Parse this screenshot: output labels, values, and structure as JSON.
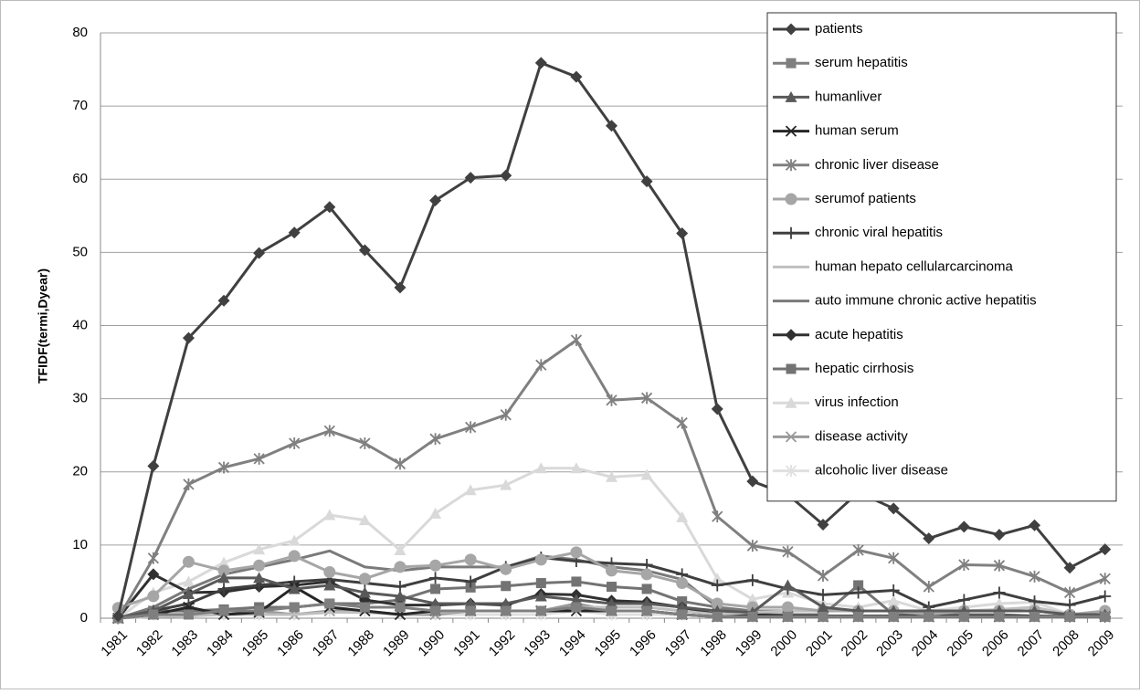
{
  "chart_data": {
    "type": "line",
    "y_label": "TFIDF(termi,Dyear)",
    "categories": [
      "1981",
      "1982",
      "1983",
      "1984",
      "1985",
      "1986",
      "1987",
      "1988",
      "1989",
      "1990",
      "1991",
      "1992",
      "1993",
      "1994",
      "1995",
      "1996",
      "1997",
      "1998",
      "1999",
      "2000",
      "2001",
      "2002",
      "2003",
      "2004",
      "2005",
      "2006",
      "2007",
      "2008",
      "2009"
    ],
    "ylim": [
      0,
      80
    ],
    "yticks": [
      0,
      10,
      20,
      30,
      40,
      50,
      60,
      70,
      80
    ],
    "grid": true,
    "legend": "top-right",
    "series": [
      {
        "name": "patients",
        "color": "#404040",
        "marker": "diamond",
        "values": [
          0.3,
          20.8,
          38.3,
          43.4,
          49.9,
          52.7,
          56.2,
          50.3,
          45.2,
          57.1,
          60.2,
          60.5,
          75.9,
          74,
          67.3,
          59.7,
          52.6,
          28.6,
          18.7,
          16.9,
          12.8,
          17.2,
          15,
          10.9,
          12.5,
          11.4,
          12.7,
          6.9,
          9.4
        ]
      },
      {
        "name": "serum hepatitis",
        "color": "#7f7f7f",
        "marker": "square",
        "values": [
          0,
          0.5,
          0.5,
          1,
          1,
          1.5,
          2,
          1.5,
          1.5,
          1,
          1,
          1,
          1,
          1.5,
          1,
          1,
          0.5,
          0.2,
          0.2,
          0.2,
          0.2,
          0.2,
          0.2,
          0.2,
          0.2,
          0.2,
          0.2,
          0.2,
          0.2
        ]
      },
      {
        "name": "humanliver",
        "color": "#595959",
        "marker": "triangle",
        "values": [
          0,
          1,
          3.3,
          5.5,
          5.5,
          4,
          4.5,
          3.5,
          3,
          2,
          2,
          2,
          3,
          2.5,
          2,
          2,
          1.5,
          1,
          0.8,
          4.5,
          1.5,
          1,
          1,
          1,
          1,
          1,
          1,
          0.5,
          0.5
        ]
      },
      {
        "name": "human serum",
        "color": "#262626",
        "marker": "x",
        "values": [
          0,
          0.5,
          1.5,
          0.5,
          0.8,
          4.3,
          1.5,
          1,
          0.5,
          1,
          1,
          1,
          1,
          1,
          1,
          1,
          0.5,
          0.2,
          0.2,
          0.2,
          0.2,
          0.2,
          0.2,
          0.2,
          0.2,
          0.2,
          0.2,
          0.2,
          0.2
        ]
      },
      {
        "name": "chronic liver disease",
        "color": "#808080",
        "marker": "star",
        "values": [
          0,
          8.2,
          18.3,
          20.6,
          21.8,
          23.9,
          25.6,
          23.9,
          21.1,
          24.5,
          26.1,
          27.8,
          34.6,
          38,
          29.8,
          30.1,
          26.7,
          13.9,
          9.9,
          9.1,
          5.8,
          9.3,
          8.2,
          4.3,
          7.3,
          7.2,
          5.7,
          3.5,
          5.4
        ]
      },
      {
        "name": "serumof patients",
        "color": "#a6a6a6",
        "marker": "circle",
        "values": [
          1.4,
          3,
          7.7,
          6.5,
          7.2,
          8.5,
          6.3,
          5.4,
          7,
          7.2,
          8,
          6.7,
          8,
          9,
          6.5,
          6,
          4.8,
          2,
          1.5,
          1.5,
          1,
          1,
          1,
          0.5,
          1,
          1,
          1,
          0.5,
          1
        ]
      },
      {
        "name": "chronic viral hepatitis",
        "color": "#3f3f3f",
        "marker": "plus",
        "values": [
          0,
          1,
          2,
          4,
          4.5,
          5,
          5.3,
          4.8,
          4.3,
          5.5,
          5,
          7,
          8.3,
          7.8,
          7.5,
          7.3,
          6,
          4.5,
          5.2,
          4,
          3.2,
          3.5,
          3.8,
          1.5,
          2.5,
          3.5,
          2.3,
          1.8,
          3
        ]
      },
      {
        "name": "human hepato cellularcarcinoma",
        "color": "#bfbfbf",
        "marker": "none",
        "values": [
          0,
          0.2,
          0.3,
          0.5,
          0.5,
          0.5,
          0.8,
          0.8,
          0.5,
          0.8,
          1,
          1,
          1,
          1.5,
          1.5,
          1.5,
          1,
          0.5,
          0.8,
          1,
          1,
          1,
          1,
          0.8,
          1,
          1.2,
          1.5,
          0.5,
          0.5
        ]
      },
      {
        "name": "auto immune chronic active hepatitis",
        "color": "#7a7a7a",
        "marker": "none",
        "values": [
          0,
          1.5,
          4,
          6,
          7,
          8,
          9.2,
          7,
          6.5,
          7,
          7,
          7,
          8.5,
          8,
          7,
          6.5,
          5.3,
          1.5,
          1,
          1,
          1,
          1,
          1,
          0.5,
          1,
          1,
          1,
          0.5,
          0.5
        ]
      },
      {
        "name": "acute hepatitis",
        "color": "#303030",
        "marker": "diamond",
        "values": [
          0,
          6,
          3.5,
          3.6,
          4.3,
          4.5,
          5,
          2.5,
          1.8,
          1.8,
          2,
          1.8,
          3.3,
          3.2,
          2.4,
          2.2,
          1.5,
          0.5,
          0.5,
          0.3,
          0.3,
          0.3,
          0.3,
          0.3,
          0.3,
          0.3,
          0.3,
          0.2,
          0.2
        ]
      },
      {
        "name": "hepatic cirrhosis",
        "color": "#737373",
        "marker": "square",
        "values": [
          0,
          1,
          1,
          1.2,
          1.5,
          1.5,
          2,
          2,
          2.5,
          4,
          4.2,
          4.4,
          4.8,
          5,
          4.3,
          4,
          2.3,
          1.5,
          0.5,
          0.5,
          0.5,
          4.5,
          0.5,
          0.5,
          0.5,
          0.5,
          0.3,
          0.3,
          0.3
        ]
      },
      {
        "name": "virus infection",
        "color": "#d9d9d9",
        "marker": "triangle",
        "values": [
          0,
          3.5,
          5,
          7.6,
          9.4,
          10.6,
          14.1,
          13.4,
          9.3,
          14.3,
          17.5,
          18.2,
          20.5,
          20.5,
          19.3,
          19.6,
          13.8,
          5.4,
          2.6,
          3.5,
          2,
          1.5,
          2.4,
          1,
          1.5,
          2,
          2.2,
          0.5,
          0.5
        ]
      },
      {
        "name": "disease activity",
        "color": "#9a9a9a",
        "marker": "x",
        "values": [
          0,
          1,
          1,
          1,
          1,
          0.5,
          1,
          1,
          0.5,
          0.5,
          1,
          1,
          1,
          2,
          1,
          1,
          0.5,
          0.2,
          0.2,
          0.2,
          0.2,
          0.2,
          0.2,
          0.2,
          0.2,
          0.2,
          0.2,
          0.2,
          0.2
        ]
      },
      {
        "name": "alcoholic liver disease",
        "color": "#e0e0e0",
        "marker": "star",
        "values": [
          0,
          0.5,
          1,
          0.5,
          0.5,
          0.5,
          1,
          1,
          0.5,
          0.5,
          0.5,
          0.5,
          0.5,
          1,
          0.5,
          0.5,
          0.5,
          0.2,
          0.2,
          0.2,
          0.2,
          0.2,
          0.2,
          0.2,
          0.2,
          0.2,
          0.2,
          0.2,
          0.2
        ]
      }
    ]
  }
}
